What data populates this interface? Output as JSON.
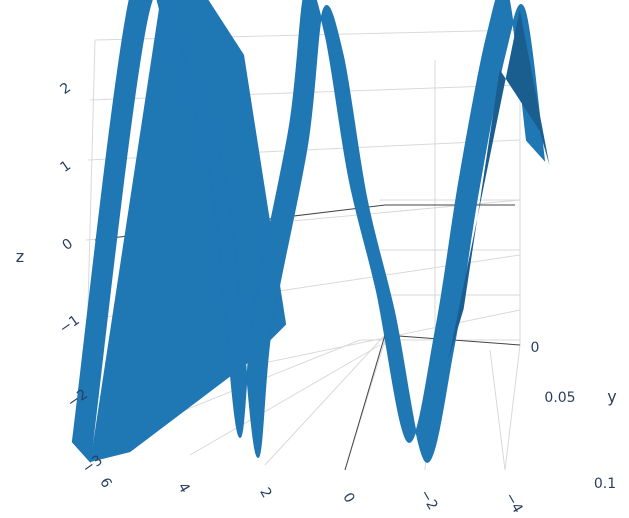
{
  "chart_data": {
    "type": "surface",
    "x": {
      "ticks": [
        6,
        4,
        2,
        0,
        -2,
        -4
      ],
      "tick_labels": [
        "6",
        "4",
        "2",
        "0",
        "−2",
        "−4"
      ],
      "range": [
        -5,
        6
      ],
      "label": ""
    },
    "y": {
      "ticks": [
        0,
        0.05,
        0.1
      ],
      "tick_labels": [
        "0",
        "0.05",
        "0.1"
      ],
      "range": [
        0,
        0.1
      ],
      "label": "y"
    },
    "z": {
      "ticks": [
        2,
        1,
        0,
        -1,
        -2,
        -3
      ],
      "tick_labels": [
        "2",
        "1",
        "0",
        "−1",
        "−2",
        "−3"
      ],
      "range": [
        -3,
        3
      ],
      "label": "z"
    },
    "surface_color": "#1f77b4",
    "surface_shade_color": "#1a5d8f",
    "profile": {
      "x": [
        6.5,
        5.0,
        4.0,
        3.0,
        2.3,
        1.9,
        1.0,
        0.6,
        0.1,
        -0.5,
        -1.2,
        -2.0,
        -2.7,
        -3.3,
        -4.0,
        -4.5,
        -5.0
      ],
      "z": [
        -3.0,
        3.0,
        2.2,
        0.5,
        -2.9,
        -1.2,
        1.2,
        3.0,
        2.4,
        0.5,
        -1.0,
        -3.0,
        -1.5,
        0.5,
        2.4,
        3.0,
        1.0
      ]
    },
    "grid": true,
    "legend": "none"
  }
}
